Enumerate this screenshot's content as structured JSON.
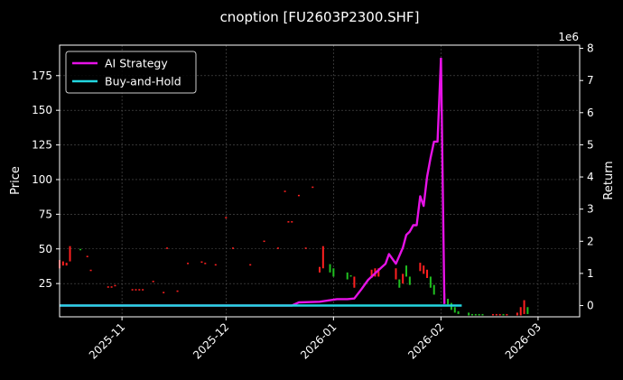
{
  "chart_data": {
    "type": "line",
    "title": "cnoption [FU2603P2300.SHF]",
    "ylabel": "Price",
    "y2label": "Return",
    "y2_scale_note": "1e6",
    "xlim": [
      "2025-10-14",
      "2026-03-13"
    ],
    "ylim": [
      1,
      197
    ],
    "y2lim": [
      -350000,
      8100000
    ],
    "grid": true,
    "legend_placement": "top-left",
    "x_ticks": [
      "2025-11-01",
      "2025-12-01",
      "2026-01-01",
      "2026-02-01",
      "2026-03-01"
    ],
    "x_tick_labels": [
      "2025-11",
      "2025-12",
      "2026-01",
      "2026-02",
      "2026-03"
    ],
    "y_ticks": [
      25,
      50,
      75,
      100,
      125,
      150,
      175
    ],
    "y2_ticks": [
      0,
      1000000,
      2000000,
      3000000,
      4000000,
      5000000,
      6000000,
      7000000,
      8000000
    ],
    "y2_tick_labels": [
      "0",
      "1",
      "2",
      "3",
      "4",
      "5",
      "6",
      "7",
      "8"
    ],
    "series": [
      {
        "name": "AI Strategy",
        "color": "#e612e6",
        "axis": "right",
        "x": [
          "2025-10-14",
          "2025-12-20",
          "2025-12-22",
          "2025-12-28",
          "2026-01-02",
          "2026-01-05",
          "2026-01-07",
          "2026-01-09",
          "2026-01-11",
          "2026-01-13",
          "2026-01-15",
          "2026-01-16",
          "2026-01-17",
          "2026-01-19",
          "2026-01-21",
          "2026-01-22",
          "2026-01-23",
          "2026-01-24",
          "2026-01-25",
          "2026-01-26",
          "2026-01-27",
          "2026-01-28",
          "2026-01-29",
          "2026-01-30",
          "2026-01-31",
          "2026-02-01"
        ],
        "values": [
          0,
          0,
          100000,
          120000,
          200000,
          200000,
          220000,
          500000,
          800000,
          1000000,
          1200000,
          1300000,
          1600000,
          1300000,
          1800000,
          2200000,
          2300000,
          2500000,
          2500000,
          3400000,
          3100000,
          4000000,
          4600000,
          5100000,
          5100000,
          7700000
        ]
      },
      {
        "name": "AI Strategy (drop)",
        "color": "#e612e6",
        "axis": "right",
        "x": [
          "2026-02-01",
          "2026-02-02"
        ],
        "values": [
          7700000,
          50000
        ]
      },
      {
        "name": "Buy-and-Hold",
        "color": "#23d6e0",
        "axis": "right",
        "x": [
          "2025-10-14",
          "2026-02-07"
        ],
        "values": [
          0,
          0
        ]
      }
    ],
    "candles": [
      {
        "x": "2025-10-14",
        "open": 42,
        "close": 36,
        "color": "#ff2020"
      },
      {
        "x": "2025-10-15",
        "open": 41,
        "close": 38,
        "color": "#ff2020"
      },
      {
        "x": "2025-10-16",
        "open": 40,
        "close": 38,
        "color": "#ff2020"
      },
      {
        "x": "2025-10-17",
        "open": 52,
        "close": 41,
        "color": "#ff2020"
      },
      {
        "x": "2025-10-20",
        "open": 49,
        "close": 50,
        "color": "#20c020"
      },
      {
        "x": "2025-10-22",
        "open": 45,
        "close": 44,
        "color": "#ff2020"
      },
      {
        "x": "2025-10-23",
        "open": 35,
        "close": 34,
        "color": "#ff2020"
      },
      {
        "x": "2025-10-28",
        "open": 23,
        "close": 22,
        "color": "#ff2020"
      },
      {
        "x": "2025-10-29",
        "open": 23,
        "close": 22,
        "color": "#ff2020"
      },
      {
        "x": "2025-10-30",
        "open": 24,
        "close": 23,
        "color": "#ff2020"
      },
      {
        "x": "2025-11-04",
        "open": 21,
        "close": 20,
        "color": "#ff2020"
      },
      {
        "x": "2025-11-05",
        "open": 21,
        "close": 20,
        "color": "#ff2020"
      },
      {
        "x": "2025-11-06",
        "open": 21,
        "close": 20,
        "color": "#ff2020"
      },
      {
        "x": "2025-11-07",
        "open": 21,
        "close": 20,
        "color": "#ff2020"
      },
      {
        "x": "2025-11-10",
        "open": 27,
        "close": 26,
        "color": "#ff2020"
      },
      {
        "x": "2025-11-13",
        "open": 19,
        "close": 18,
        "color": "#ff2020"
      },
      {
        "x": "2025-11-14",
        "open": 51,
        "close": 50,
        "color": "#ff2020"
      },
      {
        "x": "2025-11-17",
        "open": 20,
        "close": 19,
        "color": "#ff2020"
      },
      {
        "x": "2025-11-20",
        "open": 40,
        "close": 39,
        "color": "#ff2020"
      },
      {
        "x": "2025-11-24",
        "open": 41,
        "close": 40,
        "color": "#ff2020"
      },
      {
        "x": "2025-11-25",
        "open": 40,
        "close": 39,
        "color": "#ff2020"
      },
      {
        "x": "2025-11-28",
        "open": 39,
        "close": 38,
        "color": "#ff2020"
      },
      {
        "x": "2025-12-01",
        "open": 73,
        "close": 72,
        "color": "#ff2020"
      },
      {
        "x": "2025-12-03",
        "open": 51,
        "close": 50,
        "color": "#ff2020"
      },
      {
        "x": "2025-12-08",
        "open": 39,
        "close": 38,
        "color": "#ff2020"
      },
      {
        "x": "2025-12-12",
        "open": 56,
        "close": 55,
        "color": "#ff2020"
      },
      {
        "x": "2025-12-16",
        "open": 51,
        "close": 50,
        "color": "#ff2020"
      },
      {
        "x": "2025-12-18",
        "open": 92,
        "close": 91,
        "color": "#ff2020"
      },
      {
        "x": "2025-12-19",
        "open": 70,
        "close": 69,
        "color": "#ff2020"
      },
      {
        "x": "2025-12-20",
        "open": 70,
        "close": 69,
        "color": "#ff2020"
      },
      {
        "x": "2025-12-22",
        "open": 89,
        "close": 88,
        "color": "#ff2020"
      },
      {
        "x": "2025-12-24",
        "open": 51,
        "close": 50,
        "color": "#ff2020"
      },
      {
        "x": "2025-12-26",
        "open": 95,
        "close": 94,
        "color": "#ff2020"
      },
      {
        "x": "2025-12-28",
        "open": 37,
        "close": 33,
        "color": "#ff2020"
      },
      {
        "x": "2025-12-29",
        "open": 52,
        "close": 36,
        "color": "#ff2020"
      },
      {
        "x": "2025-12-31",
        "open": 39,
        "close": 33,
        "color": "#20c020"
      },
      {
        "x": "2026-01-01",
        "open": 36,
        "close": 30,
        "color": "#20c020"
      },
      {
        "x": "2026-01-05",
        "open": 33,
        "close": 28,
        "color": "#20c020"
      },
      {
        "x": "2026-01-06",
        "open": 31,
        "close": 30,
        "color": "#20c020"
      },
      {
        "x": "2026-01-07",
        "open": 30,
        "close": 22,
        "color": "#ff2020"
      },
      {
        "x": "2026-01-12",
        "open": 35,
        "close": 29,
        "color": "#ff2020"
      },
      {
        "x": "2026-01-13",
        "open": 36,
        "close": 30,
        "color": "#ff2020"
      },
      {
        "x": "2026-01-14",
        "open": 36,
        "close": 30,
        "color": "#ff2020"
      },
      {
        "x": "2026-01-19",
        "open": 36,
        "close": 28,
        "color": "#ff2020"
      },
      {
        "x": "2026-01-20",
        "open": 28,
        "close": 22,
        "color": "#20c020"
      },
      {
        "x": "2026-01-21",
        "open": 32,
        "close": 25,
        "color": "#ff2020"
      },
      {
        "x": "2026-01-22",
        "open": 38,
        "close": 30,
        "color": "#20c020"
      },
      {
        "x": "2026-01-23",
        "open": 30,
        "close": 24,
        "color": "#20c020"
      },
      {
        "x": "2026-01-26",
        "open": 40,
        "close": 34,
        "color": "#ff2020"
      },
      {
        "x": "2026-01-27",
        "open": 38,
        "close": 32,
        "color": "#ff2020"
      },
      {
        "x": "2026-01-28",
        "open": 35,
        "close": 29,
        "color": "#ff2020"
      },
      {
        "x": "2026-01-29",
        "open": 30,
        "close": 22,
        "color": "#20c020"
      },
      {
        "x": "2026-01-30",
        "open": 24,
        "close": 17,
        "color": "#20c020"
      },
      {
        "x": "2026-02-02",
        "open": 18,
        "close": 14,
        "color": "#20c020"
      },
      {
        "x": "2026-02-03",
        "open": 14,
        "close": 10,
        "color": "#20c020"
      },
      {
        "x": "2026-02-04",
        "open": 11,
        "close": 6,
        "color": "#20c020"
      },
      {
        "x": "2026-02-05",
        "open": 8,
        "close": 4,
        "color": "#20c020"
      },
      {
        "x": "2026-02-06",
        "open": 5,
        "close": 3,
        "color": "#20c020"
      },
      {
        "x": "2026-02-09",
        "open": 4,
        "close": 2,
        "color": "#20c020"
      },
      {
        "x": "2026-02-10",
        "open": 3,
        "close": 2,
        "color": "#20c020"
      },
      {
        "x": "2026-02-11",
        "open": 3,
        "close": 2,
        "color": "#20c020"
      },
      {
        "x": "2026-02-12",
        "open": 3,
        "close": 2,
        "color": "#20c020"
      },
      {
        "x": "2026-02-13",
        "open": 3,
        "close": 2,
        "color": "#20c020"
      },
      {
        "x": "2026-02-16",
        "open": 3,
        "close": 2,
        "color": "#ff2020"
      },
      {
        "x": "2026-02-17",
        "open": 3,
        "close": 2,
        "color": "#ff2020"
      },
      {
        "x": "2026-02-18",
        "open": 3,
        "close": 2,
        "color": "#ff2020"
      },
      {
        "x": "2026-02-19",
        "open": 3,
        "close": 2,
        "color": "#20c020"
      },
      {
        "x": "2026-02-20",
        "open": 3,
        "close": 2,
        "color": "#ff2020"
      },
      {
        "x": "2026-02-23",
        "open": 4,
        "close": 2,
        "color": "#ff2020"
      },
      {
        "x": "2026-02-24",
        "open": 8,
        "close": 2,
        "color": "#ff2020"
      },
      {
        "x": "2026-02-25",
        "open": 13,
        "close": 3,
        "color": "#ff2020"
      },
      {
        "x": "2026-02-26",
        "open": 8,
        "close": 3,
        "color": "#20c020"
      }
    ],
    "legend": [
      {
        "label": "AI Strategy",
        "color": "#e612e6"
      },
      {
        "label": "Buy-and-Hold",
        "color": "#23d6e0"
      }
    ]
  }
}
